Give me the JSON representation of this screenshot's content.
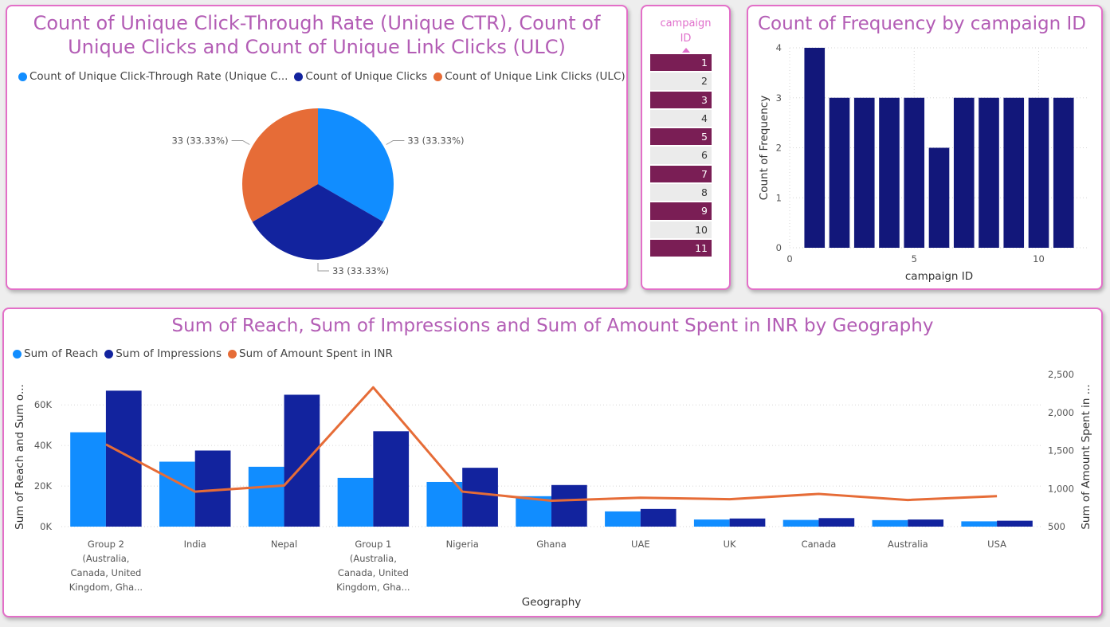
{
  "pie_card": {
    "title_line1": "Count of Unique Click-Through Rate (Unique CTR), Count of",
    "title_line2": "Unique Clicks and Count of Unique Link Clicks (ULC)",
    "legend": [
      {
        "label": "Count of Unique Click-Through Rate (Unique C...",
        "color": "#118dff"
      },
      {
        "label": "Count of Unique Clicks",
        "color": "#12239e"
      },
      {
        "label": "Count of Unique Link Clicks (ULC)",
        "color": "#e66c37"
      }
    ]
  },
  "slicer": {
    "title_line1": "campaign",
    "title_line2": "ID",
    "sort_icon": "triangle-up-icon",
    "items": [
      {
        "label": "1",
        "selected": true
      },
      {
        "label": "2",
        "selected": false
      },
      {
        "label": "3",
        "selected": true
      },
      {
        "label": "4",
        "selected": false
      },
      {
        "label": "5",
        "selected": true
      },
      {
        "label": "6",
        "selected": false
      },
      {
        "label": "7",
        "selected": true
      },
      {
        "label": "8",
        "selected": false
      },
      {
        "label": "9",
        "selected": true
      },
      {
        "label": "10",
        "selected": false
      },
      {
        "label": "11",
        "selected": true
      }
    ]
  },
  "freq_card": {
    "title": "Count of Frequency by campaign ID"
  },
  "combo_card": {
    "title": "Sum of Reach, Sum of Impressions and Sum of Amount Spent in INR by Geography",
    "legend": [
      {
        "label": "Sum of Reach",
        "color": "#118dff"
      },
      {
        "label": "Sum of Impressions",
        "color": "#12239e"
      },
      {
        "label": "Sum of Amount Spent in INR",
        "color": "#e66c37"
      }
    ]
  },
  "chart_data": [
    {
      "type": "pie",
      "slices": [
        {
          "name": "Count of Unique Click-Through Rate (Unique CTR)",
          "value": 33,
          "label": "33 (33.33%)",
          "color": "#118dff"
        },
        {
          "name": "Count of Unique Clicks",
          "value": 33,
          "label": "33 (33.33%)",
          "color": "#12239e"
        },
        {
          "name": "Count of Unique Link Clicks (ULC)",
          "value": 33,
          "label": "33 (33.33%)",
          "color": "#e66c37"
        }
      ]
    },
    {
      "type": "bar",
      "title": "Count of Frequency by campaign ID",
      "xlabel": "campaign ID",
      "ylabel": "Count of Frequency",
      "x": [
        1,
        2,
        3,
        4,
        5,
        6,
        7,
        8,
        9,
        10,
        11
      ],
      "values": [
        4,
        3,
        3,
        3,
        3,
        2,
        3,
        3,
        3,
        3,
        3
      ],
      "xlim": [
        0,
        12
      ],
      "ylim": [
        0,
        4
      ],
      "xticks": [
        "0",
        "5",
        "10"
      ],
      "yticks": [
        "0",
        "1",
        "2",
        "3",
        "4"
      ],
      "color": "#12177a",
      "grid": true
    },
    {
      "type": "bar",
      "title": "Sum of Reach, Sum of Impressions and Sum of Amount Spent in INR by Geography",
      "xlabel": "Geography",
      "ylabel": "Sum of Reach and Sum o...",
      "ylabel_right": "Sum of Amount Spent in ...",
      "categories": [
        [
          "Group 2",
          "(Australia,",
          "Canada, United",
          "Kingdom, Gha..."
        ],
        [
          "India"
        ],
        [
          "Nepal"
        ],
        [
          "Group 1",
          "(Australia,",
          "Canada, United",
          "Kingdom, Gha..."
        ],
        [
          "Nigeria"
        ],
        [
          "Ghana"
        ],
        [
          "UAE"
        ],
        [
          "UK"
        ],
        [
          "Canada"
        ],
        [
          "Australia"
        ],
        [
          "USA"
        ]
      ],
      "series": [
        {
          "name": "Sum of Reach",
          "kind": "bar",
          "axis": "left",
          "color": "#118dff",
          "values": [
            46500,
            32000,
            29500,
            24000,
            22000,
            15000,
            7500,
            3500,
            3300,
            3200,
            2600
          ]
        },
        {
          "name": "Sum of Impressions",
          "kind": "bar",
          "axis": "left",
          "color": "#12239e",
          "values": [
            67000,
            37500,
            65000,
            47000,
            29000,
            20500,
            8700,
            4000,
            4200,
            3500,
            2900
          ]
        },
        {
          "name": "Sum of Amount Spent in INR",
          "kind": "line",
          "axis": "right",
          "color": "#e66c37",
          "values": [
            1580,
            960,
            1040,
            2330,
            960,
            840,
            880,
            860,
            930,
            850,
            900
          ]
        }
      ],
      "ylim": [
        0,
        75000
      ],
      "yticks": [
        "0K",
        "20K",
        "40K",
        "60K"
      ],
      "ylim_right": [
        500,
        2500
      ],
      "yticks_right": [
        "500",
        "1,000",
        "1,500",
        "2,000",
        "2,500"
      ],
      "legend_position": "top-left",
      "grid": true
    }
  ]
}
